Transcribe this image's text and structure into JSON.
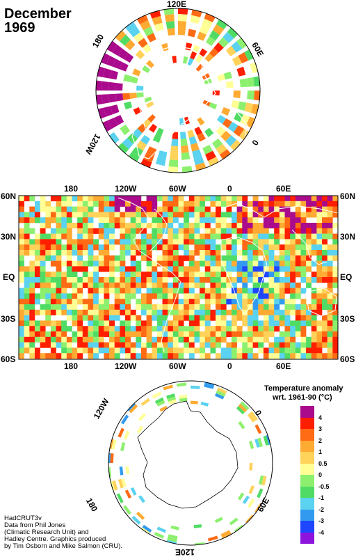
{
  "title": {
    "month": "December",
    "year": "1969"
  },
  "north_polar_labels": {
    "top": "120E",
    "left": "180",
    "right": "60E",
    "lower_right": "0",
    "lower_left": "120W"
  },
  "map_lat_labels": [
    "60N",
    "30N",
    "EQ",
    "30S",
    "60S"
  ],
  "map_lon_labels": [
    "180",
    "120W",
    "60W",
    "0",
    "60E"
  ],
  "south_polar_labels": {
    "upper_left": "120W",
    "right": "0",
    "lower_left": "180",
    "lower_right": "60E",
    "bottom": "120E"
  },
  "credit": {
    "line1": "HadCRUT3v",
    "line2": "Data from Phil Jones",
    "line3": "(Climatic Research Unit) and",
    "line4": "Hadley Centre.  Graphics produced",
    "line5": "by Tim Osborn and Mike Salmon (CRU)."
  },
  "legend": {
    "title_line1": "Temperature anomaly",
    "title_line2": "wrt. 1961-90  (°C)",
    "items": [
      {
        "value": "4",
        "color": "#aa0a8c"
      },
      {
        "value": "3",
        "color": "#ff1e00"
      },
      {
        "value": "2",
        "color": "#ff6a14"
      },
      {
        "value": "1",
        "color": "#ffaa32"
      },
      {
        "value": "0.5",
        "color": "#ffd25a"
      },
      {
        "value": "0",
        "color": "#ffff96"
      },
      {
        "value": "-0.5",
        "color": "#8cf06e"
      },
      {
        "value": "-1",
        "color": "#50dc64"
      },
      {
        "value": "-2",
        "color": "#5ad2f0"
      },
      {
        "value": "-3",
        "color": "#329bf0"
      },
      {
        "value": "-4",
        "color": "#1e46ff"
      },
      {
        "value": "",
        "color": "#8c14dc"
      }
    ]
  }
}
